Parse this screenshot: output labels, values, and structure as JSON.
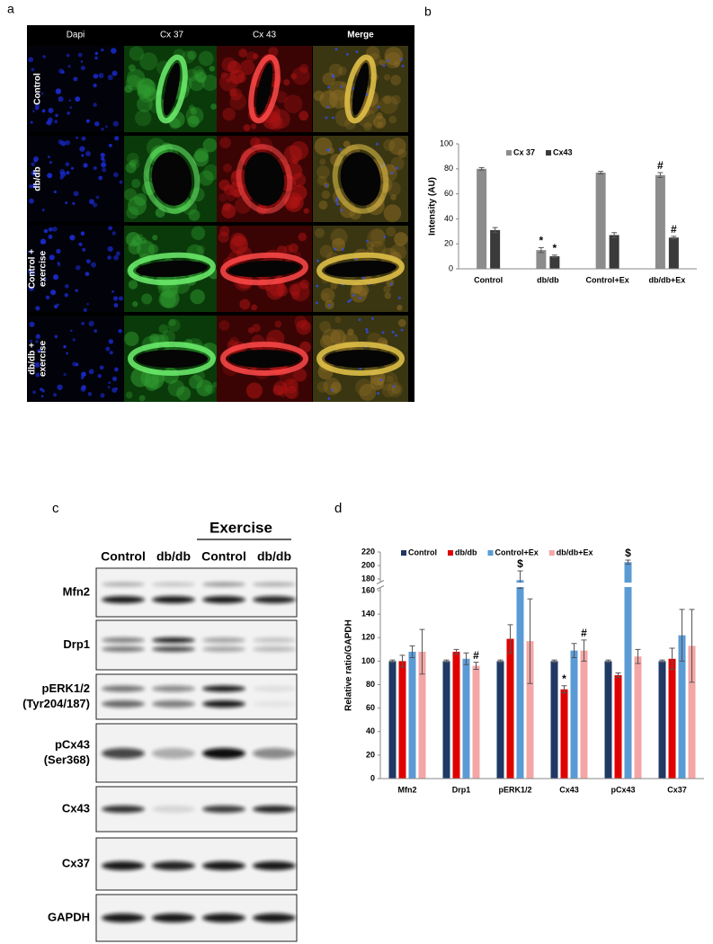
{
  "panel_labels": [
    "a",
    "b",
    "c",
    "d"
  ],
  "image_panel": {
    "columns": [
      "Dapi",
      "Cx 37",
      "Cx 43",
      "Merge"
    ],
    "rows": [
      [
        "Control"
      ],
      [
        "db/db"
      ],
      [
        "Control +",
        "exercise"
      ],
      [
        "db/db +",
        "exercise"
      ]
    ]
  },
  "chart_data": [
    {
      "type": "bar",
      "y_label": "Intensity (AU)",
      "categories": [
        "Control",
        "db/db",
        "Control+Ex",
        "db/db+Ex"
      ],
      "series": [
        {
          "name": "Cx 37",
          "color": "#8c8c8c",
          "values": [
            80,
            15,
            77,
            75
          ],
          "errors": [
            1,
            2,
            1,
            2
          ],
          "markers": [
            null,
            "*",
            null,
            "#"
          ]
        },
        {
          "name": "Cx43",
          "color": "#3a3a3a",
          "values": [
            31,
            10,
            27,
            25
          ],
          "errors": [
            2,
            1,
            2,
            1
          ],
          "markers": [
            null,
            "*",
            null,
            "#"
          ]
        }
      ],
      "ylim": [
        0,
        100
      ],
      "yticks": [
        0,
        20,
        40,
        60,
        80,
        100
      ],
      "legend": "top-left"
    },
    {
      "type": "bar",
      "y_label": "Relative ratio/GAPDH",
      "categories": [
        "Mfn2",
        "Drp1",
        "pERK1/2",
        "Cx43",
        "pCx43",
        "Cx37"
      ],
      "series": [
        {
          "name": "Control",
          "color": "#1f3864",
          "values": [
            100,
            100,
            100,
            100,
            100,
            100
          ],
          "errors": [
            1,
            1,
            1,
            1,
            1,
            1
          ],
          "markers": [
            null,
            null,
            null,
            null,
            null,
            null
          ]
        },
        {
          "name": "db/db",
          "color": "#e00000",
          "values": [
            100,
            108,
            119,
            76,
            88,
            102
          ],
          "errors": [
            5,
            2,
            12,
            3,
            2,
            9
          ],
          "markers": [
            null,
            null,
            null,
            "*",
            null,
            null
          ]
        },
        {
          "name": "Control+Ex",
          "color": "#5b9bd5",
          "values": [
            108,
            102,
            178,
            109,
            205,
            122
          ],
          "errors": [
            5,
            5,
            14,
            6,
            3,
            22
          ],
          "markers": [
            null,
            null,
            "$",
            null,
            "$",
            null
          ]
        },
        {
          "name": "db/db+Ex",
          "color": "#f4a6a6",
          "values": [
            108,
            96,
            117,
            109,
            104,
            113
          ],
          "errors": [
            19,
            3,
            36,
            9,
            6,
            31
          ],
          "markers": [
            null,
            "#",
            null,
            "#",
            null,
            null
          ]
        }
      ],
      "ylim": [
        0,
        220
      ],
      "ybreak": [
        160,
        180
      ],
      "yticks": [
        0,
        20,
        40,
        60,
        80,
        100,
        120,
        140,
        160,
        180,
        200,
        220
      ],
      "legend": "top"
    }
  ],
  "blot": {
    "group_label": "Exercise",
    "lanes": [
      "Control",
      "db/db",
      "Control",
      "db/db"
    ],
    "rows": [
      [
        "Mfn2"
      ],
      [
        "Drp1"
      ],
      [
        "pERK1/2",
        "(Tyr204/187)"
      ],
      [
        "pCx43",
        "(Ser368)"
      ],
      [
        "Cx43"
      ],
      [
        "Cx37"
      ],
      [
        "GAPDH"
      ]
    ]
  }
}
